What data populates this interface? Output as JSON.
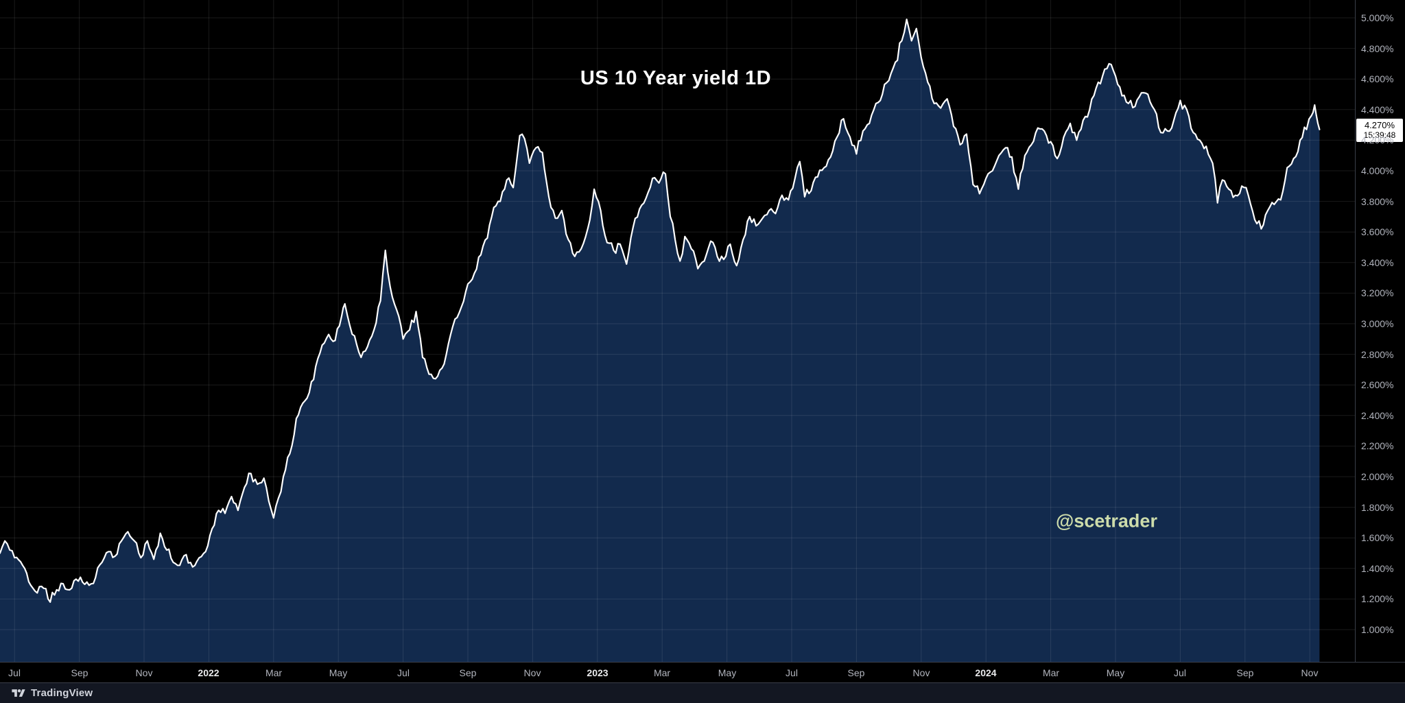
{
  "chart": {
    "title": "US 10 Year yield 1D",
    "watermark": "@scetrader",
    "last_price": {
      "value": "4.270%",
      "time": "15:39:48"
    },
    "colors": {
      "background": "#000000",
      "area_fill": "#132b50",
      "line": "#ffffff",
      "grid": "rgba(255,255,255,0.10)",
      "axis_text": "#b2b5be",
      "year_text": "#e9eaec",
      "watermark": "#cddcab",
      "separator": "#3a3e49",
      "toolbar_bg": "#131722",
      "brand_text": "#d1d4dc",
      "price_label_bg": "#ffffff",
      "price_label_text": "#000000"
    }
  },
  "chart_data": {
    "type": "area",
    "title": "US 10 Year yield 1D",
    "symbol": "US 10 Year yield",
    "timeframe": "1D",
    "ylim": [
      1.0,
      5.0
    ],
    "y_tick_step": 0.2,
    "x_range": [
      "Jul 2021",
      "Nov 2024"
    ],
    "last_value": 4.27,
    "grid": true,
    "legend": false,
    "y_ticks": [
      "5.000%",
      "4.800%",
      "4.600%",
      "4.400%",
      "4.200%",
      "4.000%",
      "3.800%",
      "3.600%",
      "3.400%",
      "3.200%",
      "3.000%",
      "2.800%",
      "2.600%",
      "2.400%",
      "2.200%",
      "2.000%",
      "1.800%",
      "1.600%",
      "1.400%",
      "1.200%",
      "1.000%"
    ],
    "x_ticks": [
      {
        "label": "Jul",
        "m": 0
      },
      {
        "label": "Sep",
        "m": 2
      },
      {
        "label": "Nov",
        "m": 4
      },
      {
        "label": "2022",
        "m": 6,
        "year": true
      },
      {
        "label": "Mar",
        "m": 8
      },
      {
        "label": "May",
        "m": 10
      },
      {
        "label": "Jul",
        "m": 12
      },
      {
        "label": "Sep",
        "m": 14
      },
      {
        "label": "Nov",
        "m": 16
      },
      {
        "label": "2023",
        "m": 18,
        "year": true
      },
      {
        "label": "Mar",
        "m": 20
      },
      {
        "label": "May",
        "m": 22
      },
      {
        "label": "Jul",
        "m": 24
      },
      {
        "label": "Sep",
        "m": 26
      },
      {
        "label": "Nov",
        "m": 28
      },
      {
        "label": "2024",
        "m": 30,
        "year": true
      },
      {
        "label": "Mar",
        "m": 32
      },
      {
        "label": "May",
        "m": 34
      },
      {
        "label": "Jul",
        "m": 36
      },
      {
        "label": "Sep",
        "m": 38
      },
      {
        "label": "Nov",
        "m": 40
      }
    ],
    "series": [
      {
        "name": "US 10 Year yield",
        "unit": "%",
        "x_unit": "months since Jul 2021",
        "points": [
          [
            -0.45,
            1.5
          ],
          [
            -0.3,
            1.58
          ],
          [
            -0.15,
            1.52
          ],
          [
            0,
            1.47
          ],
          [
            0.25,
            1.42
          ],
          [
            0.5,
            1.29
          ],
          [
            0.7,
            1.24
          ],
          [
            0.9,
            1.27
          ],
          [
            1.1,
            1.18
          ],
          [
            1.3,
            1.26
          ],
          [
            1.5,
            1.3
          ],
          [
            1.7,
            1.26
          ],
          [
            1.9,
            1.33
          ],
          [
            2.1,
            1.31
          ],
          [
            2.3,
            1.29
          ],
          [
            2.5,
            1.34
          ],
          [
            2.7,
            1.44
          ],
          [
            2.9,
            1.51
          ],
          [
            3.1,
            1.48
          ],
          [
            3.3,
            1.58
          ],
          [
            3.5,
            1.64
          ],
          [
            3.7,
            1.58
          ],
          [
            3.9,
            1.47
          ],
          [
            4.1,
            1.58
          ],
          [
            4.3,
            1.46
          ],
          [
            4.5,
            1.63
          ],
          [
            4.7,
            1.52
          ],
          [
            4.9,
            1.44
          ],
          [
            5.1,
            1.42
          ],
          [
            5.3,
            1.49
          ],
          [
            5.5,
            1.41
          ],
          [
            5.7,
            1.47
          ],
          [
            5.9,
            1.51
          ],
          [
            6.1,
            1.66
          ],
          [
            6.3,
            1.78
          ],
          [
            6.5,
            1.76
          ],
          [
            6.7,
            1.87
          ],
          [
            6.9,
            1.78
          ],
          [
            7.1,
            1.93
          ],
          [
            7.3,
            2.02
          ],
          [
            7.5,
            1.95
          ],
          [
            7.7,
            1.99
          ],
          [
            7.85,
            1.84
          ],
          [
            8,
            1.73
          ],
          [
            8.15,
            1.86
          ],
          [
            8.3,
            2
          ],
          [
            8.5,
            2.15
          ],
          [
            8.7,
            2.38
          ],
          [
            8.9,
            2.48
          ],
          [
            9.1,
            2.55
          ],
          [
            9.3,
            2.72
          ],
          [
            9.5,
            2.86
          ],
          [
            9.7,
            2.93
          ],
          [
            9.9,
            2.89
          ],
          [
            10.1,
            3.05
          ],
          [
            10.2,
            3.13
          ],
          [
            10.35,
            2.99
          ],
          [
            10.5,
            2.92
          ],
          [
            10.7,
            2.78
          ],
          [
            10.9,
            2.85
          ],
          [
            11.1,
            2.96
          ],
          [
            11.3,
            3.15
          ],
          [
            11.45,
            3.48
          ],
          [
            11.6,
            3.24
          ],
          [
            11.8,
            3.09
          ],
          [
            12,
            2.9
          ],
          [
            12.2,
            2.96
          ],
          [
            12.4,
            3.08
          ],
          [
            12.6,
            2.78
          ],
          [
            12.8,
            2.67
          ],
          [
            13,
            2.64
          ],
          [
            13.2,
            2.71
          ],
          [
            13.4,
            2.87
          ],
          [
            13.6,
            3.03
          ],
          [
            13.8,
            3.11
          ],
          [
            14,
            3.26
          ],
          [
            14.2,
            3.33
          ],
          [
            14.4,
            3.45
          ],
          [
            14.6,
            3.56
          ],
          [
            14.8,
            3.76
          ],
          [
            15,
            3.8
          ],
          [
            15.2,
            3.94
          ],
          [
            15.4,
            3.89
          ],
          [
            15.6,
            4.23
          ],
          [
            15.75,
            4.21
          ],
          [
            15.9,
            4.05
          ],
          [
            16.1,
            4.15
          ],
          [
            16.3,
            4.12
          ],
          [
            16.5,
            3.83
          ],
          [
            16.7,
            3.69
          ],
          [
            16.9,
            3.74
          ],
          [
            17.1,
            3.55
          ],
          [
            17.3,
            3.44
          ],
          [
            17.5,
            3.49
          ],
          [
            17.7,
            3.62
          ],
          [
            17.9,
            3.88
          ],
          [
            18.1,
            3.74
          ],
          [
            18.3,
            3.53
          ],
          [
            18.5,
            3.48
          ],
          [
            18.7,
            3.52
          ],
          [
            18.9,
            3.39
          ],
          [
            19.1,
            3.63
          ],
          [
            19.3,
            3.75
          ],
          [
            19.5,
            3.82
          ],
          [
            19.7,
            3.95
          ],
          [
            19.9,
            3.92
          ],
          [
            20.1,
            3.98
          ],
          [
            20.25,
            3.7
          ],
          [
            20.4,
            3.55
          ],
          [
            20.55,
            3.41
          ],
          [
            20.7,
            3.57
          ],
          [
            20.9,
            3.49
          ],
          [
            21.1,
            3.36
          ],
          [
            21.3,
            3.41
          ],
          [
            21.5,
            3.54
          ],
          [
            21.7,
            3.44
          ],
          [
            21.9,
            3.42
          ],
          [
            22.1,
            3.52
          ],
          [
            22.3,
            3.38
          ],
          [
            22.5,
            3.55
          ],
          [
            22.7,
            3.7
          ],
          [
            22.9,
            3.64
          ],
          [
            23.1,
            3.69
          ],
          [
            23.3,
            3.74
          ],
          [
            23.5,
            3.72
          ],
          [
            23.7,
            3.84
          ],
          [
            23.9,
            3.81
          ],
          [
            24.1,
            3.95
          ],
          [
            24.25,
            4.06
          ],
          [
            24.4,
            3.83
          ],
          [
            24.6,
            3.87
          ],
          [
            24.8,
            3.96
          ],
          [
            25,
            4.02
          ],
          [
            25.2,
            4.09
          ],
          [
            25.4,
            4.22
          ],
          [
            25.6,
            4.34
          ],
          [
            25.8,
            4.22
          ],
          [
            26,
            4.11
          ],
          [
            26.2,
            4.26
          ],
          [
            26.4,
            4.31
          ],
          [
            26.6,
            4.44
          ],
          [
            26.8,
            4.5
          ],
          [
            27,
            4.59
          ],
          [
            27.2,
            4.71
          ],
          [
            27.4,
            4.85
          ],
          [
            27.55,
            4.99
          ],
          [
            27.7,
            4.85
          ],
          [
            27.85,
            4.93
          ],
          [
            28,
            4.74
          ],
          [
            28.2,
            4.58
          ],
          [
            28.4,
            4.44
          ],
          [
            28.6,
            4.41
          ],
          [
            28.8,
            4.47
          ],
          [
            29,
            4.29
          ],
          [
            29.2,
            4.17
          ],
          [
            29.4,
            4.24
          ],
          [
            29.6,
            3.91
          ],
          [
            29.8,
            3.85
          ],
          [
            30,
            3.95
          ],
          [
            30.2,
            4
          ],
          [
            30.4,
            4.1
          ],
          [
            30.6,
            4.15
          ],
          [
            30.8,
            4.09
          ],
          [
            31,
            3.88
          ],
          [
            31.2,
            4.1
          ],
          [
            31.4,
            4.17
          ],
          [
            31.6,
            4.28
          ],
          [
            31.8,
            4.26
          ],
          [
            32,
            4.19
          ],
          [
            32.2,
            4.08
          ],
          [
            32.4,
            4.22
          ],
          [
            32.6,
            4.31
          ],
          [
            32.8,
            4.2
          ],
          [
            33,
            4.33
          ],
          [
            33.2,
            4.4
          ],
          [
            33.4,
            4.54
          ],
          [
            33.6,
            4.62
          ],
          [
            33.8,
            4.7
          ],
          [
            34,
            4.62
          ],
          [
            34.2,
            4.49
          ],
          [
            34.4,
            4.44
          ],
          [
            34.6,
            4.42
          ],
          [
            34.8,
            4.51
          ],
          [
            35,
            4.5
          ],
          [
            35.2,
            4.4
          ],
          [
            35.4,
            4.25
          ],
          [
            35.6,
            4.26
          ],
          [
            35.8,
            4.33
          ],
          [
            36,
            4.46
          ],
          [
            36.2,
            4.4
          ],
          [
            36.4,
            4.25
          ],
          [
            36.6,
            4.2
          ],
          [
            36.8,
            4.16
          ],
          [
            37,
            4.05
          ],
          [
            37.15,
            3.79
          ],
          [
            37.3,
            3.94
          ],
          [
            37.5,
            3.88
          ],
          [
            37.7,
            3.84
          ],
          [
            37.9,
            3.9
          ],
          [
            38.1,
            3.84
          ],
          [
            38.3,
            3.68
          ],
          [
            38.5,
            3.62
          ],
          [
            38.7,
            3.74
          ],
          [
            38.9,
            3.78
          ],
          [
            39.1,
            3.81
          ],
          [
            39.3,
            4.02
          ],
          [
            39.5,
            4.08
          ],
          [
            39.7,
            4.2
          ],
          [
            39.9,
            4.27
          ],
          [
            40.05,
            4.36
          ],
          [
            40.15,
            4.43
          ],
          [
            40.25,
            4.31
          ],
          [
            40.3,
            4.27
          ]
        ]
      }
    ]
  },
  "footer": {
    "brand": "TradingView"
  }
}
